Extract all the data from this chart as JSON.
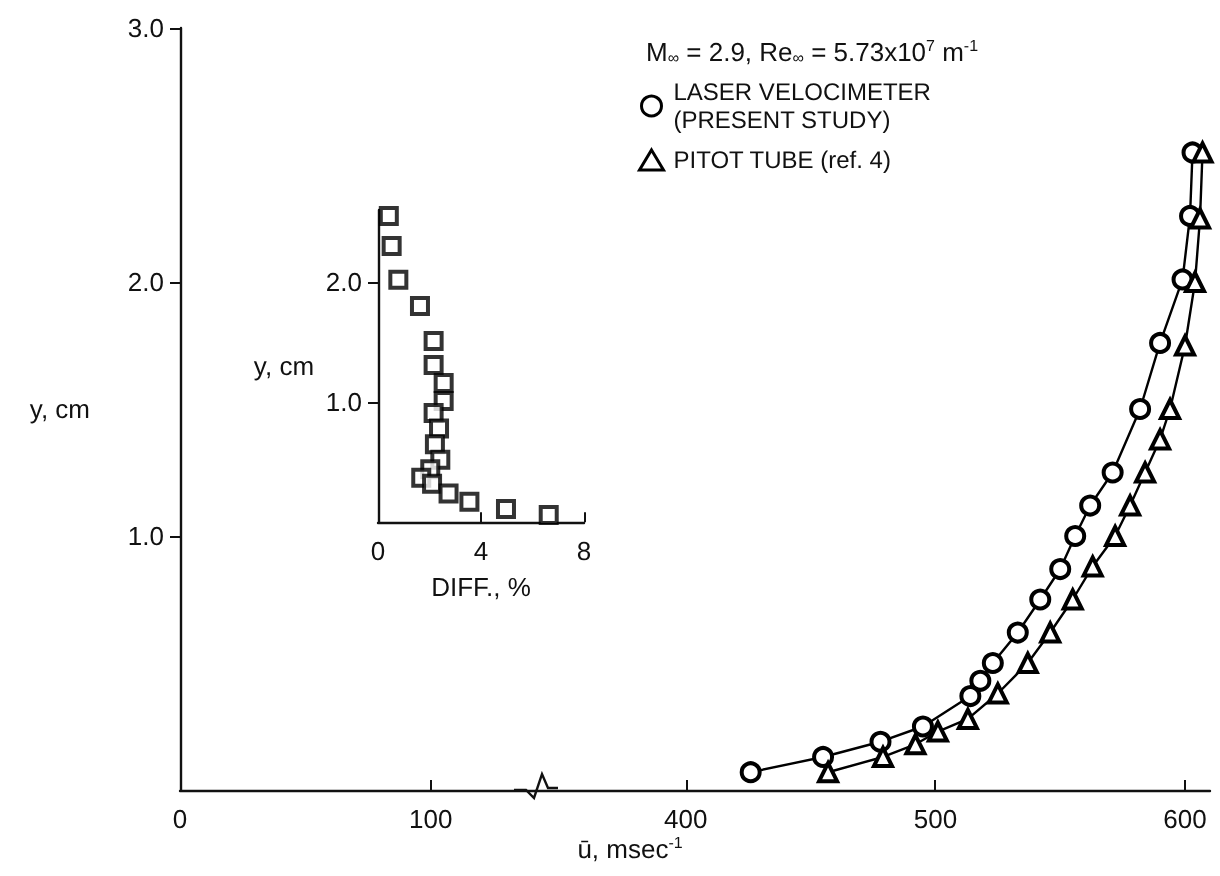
{
  "chart_data": [
    {
      "type": "line",
      "ylabel": "y, cm",
      "xlim": [
        0,
        142
      ],
      "xticks": [
        0,
        100
      ],
      "ylim": [
        0,
        3
      ],
      "yticks": [
        {
          "value": 1,
          "label": "1.0"
        },
        {
          "value": 2,
          "label": "2.0"
        },
        {
          "value": 3,
          "label": "3.0"
        }
      ]
    },
    {
      "type": "line",
      "xlabel": "ū, msec$^{-1}$",
      "annotations": [
        "M$_{∞}$ = 2.9, Re$_{∞}$ = 5.73x10$^{7}$ m$^{-1}$"
      ],
      "xlim": [
        340,
        610
      ],
      "xticks": [
        400,
        500,
        600
      ],
      "ylim": [
        0,
        3
      ],
      "tick_labels": "x",
      "legend": "top",
      "line_style": "solid",
      "series": [
        {
          "name": "LASER VELOCIMETER (PRESENT STUDY)",
          "color": "#000000",
          "marker": "circle",
          "x": [
            426,
            455,
            478,
            495,
            514,
            518,
            523,
            533,
            542,
            550,
            556,
            562,
            571,
            582,
            590,
            599,
            602,
            603
          ],
          "values": [
            0.07,
            0.13,
            0.19,
            0.25,
            0.37,
            0.43,
            0.5,
            0.62,
            0.75,
            0.87,
            1.0,
            1.12,
            1.25,
            1.5,
            1.76,
            2.01,
            2.26,
            2.51
          ]
        },
        {
          "name": "PITOT TUBE (ref. 4)",
          "color": "#000000",
          "marker": "triangle",
          "x": [
            457,
            479,
            492,
            501,
            513,
            525,
            537,
            546,
            555,
            563,
            572,
            578,
            584,
            590,
            594,
            600,
            604,
            606,
            607
          ],
          "values": [
            0.07,
            0.13,
            0.18,
            0.23,
            0.28,
            0.38,
            0.5,
            0.62,
            0.75,
            0.88,
            1.0,
            1.12,
            1.25,
            1.38,
            1.5,
            1.75,
            2.0,
            2.25,
            2.51
          ]
        }
      ]
    },
    {
      "type": "scatter",
      "xlabel": "DIFF., %",
      "ylabel": "y, cm",
      "xlim": [
        0,
        8
      ],
      "xticks": [
        0,
        4,
        8
      ],
      "ylim": [
        0,
        2.6
      ],
      "yticks": [
        {
          "value": 1,
          "label": "1.0"
        },
        {
          "value": 2,
          "label": "2.0"
        }
      ],
      "marker": "square",
      "color": "#000000",
      "x": [
        0.42,
        0.53,
        0.79,
        1.63,
        2.16,
        2.16,
        2.55,
        2.55,
        2.16,
        2.37,
        2.21,
        2.42,
        2.03,
        1.68,
        2.1,
        2.74,
        3.55,
        4.97,
        6.63
      ],
      "values": [
        2.55,
        2.3,
        2.02,
        1.8,
        1.51,
        1.31,
        1.16,
        1.01,
        0.91,
        0.78,
        0.65,
        0.52,
        0.44,
        0.37,
        0.32,
        0.24,
        0.17,
        0.11,
        0.06
      ]
    }
  ]
}
